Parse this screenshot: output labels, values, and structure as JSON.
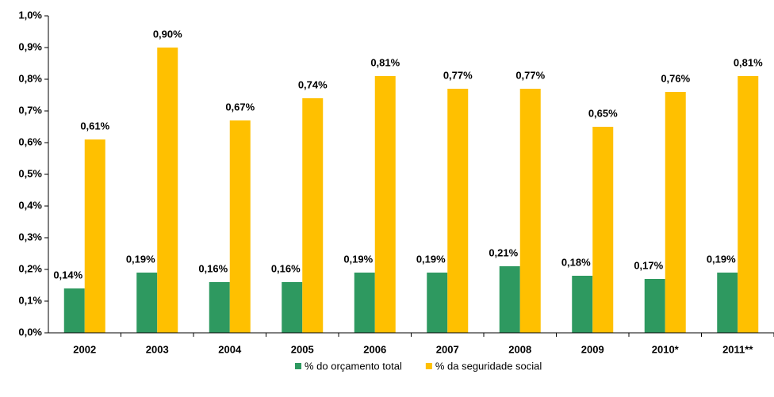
{
  "chart_data": {
    "type": "bar",
    "categories": [
      "2002",
      "2003",
      "2004",
      "2005",
      "2006",
      "2007",
      "2008",
      "2009",
      "2010*",
      "2011**"
    ],
    "series": [
      {
        "name": "% do orçamento total",
        "color": "#2e9960",
        "values": [
          0.14,
          0.19,
          0.16,
          0.16,
          0.19,
          0.19,
          0.21,
          0.18,
          0.17,
          0.19
        ],
        "value_labels": [
          "0,14%",
          "0,19%",
          "0,16%",
          "0,16%",
          "0,19%",
          "0,19%",
          "0,21%",
          "0,18%",
          "0,17%",
          "0,19%"
        ]
      },
      {
        "name": "% da seguridade social",
        "color": "#ffc000",
        "values": [
          0.61,
          0.9,
          0.67,
          0.74,
          0.81,
          0.77,
          0.77,
          0.65,
          0.76,
          0.81
        ],
        "value_labels": [
          "0,61%",
          "0,90%",
          "0,67%",
          "0,74%",
          "0,81%",
          "0,77%",
          "0,77%",
          "0,65%",
          "0,76%",
          "0,81%"
        ]
      }
    ],
    "ylim": [
      0,
      1.0
    ],
    "yticks": [
      {
        "value": 0,
        "label": "0,0%"
      },
      {
        "value": 0.1,
        "label": "0,1%"
      },
      {
        "value": 0.2,
        "label": "0,2%"
      },
      {
        "value": 0.3,
        "label": "0,3%"
      },
      {
        "value": 0.4,
        "label": "0,4%"
      },
      {
        "value": 0.5,
        "label": "0,5%"
      },
      {
        "value": 0.6,
        "label": "0,6%"
      },
      {
        "value": 0.7,
        "label": "0,7%"
      },
      {
        "value": 0.8,
        "label": "0,8%"
      },
      {
        "value": 0.9,
        "label": "0,9%"
      },
      {
        "value": 1.0,
        "label": "1,0%"
      }
    ],
    "legend": "bottom"
  }
}
